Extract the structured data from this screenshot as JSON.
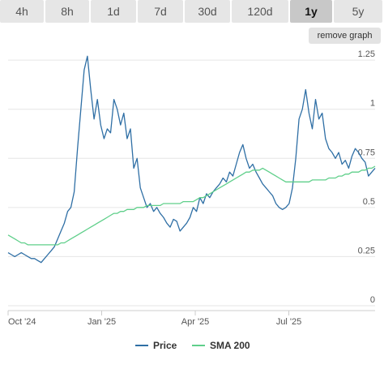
{
  "tabs": [
    {
      "label": "4h",
      "active": false
    },
    {
      "label": "8h",
      "active": false
    },
    {
      "label": "1d",
      "active": false
    },
    {
      "label": "7d",
      "active": false
    },
    {
      "label": "30d",
      "active": false
    },
    {
      "label": "120d",
      "active": false
    },
    {
      "label": "1y",
      "active": true
    },
    {
      "label": "5y",
      "active": false
    }
  ],
  "remove_graph_label": "remove graph",
  "chart_data": {
    "type": "line",
    "x_labels": [
      "Oct '24",
      "Jan '25",
      "Apr '25",
      "Jul '25"
    ],
    "y_ticks": [
      "0",
      "0.25",
      "0.5",
      "0.75",
      "1",
      "1.25"
    ],
    "ylim": [
      0,
      1.3
    ],
    "grid": true,
    "legend_position": "bottom",
    "series": [
      {
        "name": "Price",
        "color": "#2f6fa5",
        "values": [
          0.27,
          0.26,
          0.25,
          0.26,
          0.27,
          0.26,
          0.25,
          0.24,
          0.24,
          0.23,
          0.22,
          0.24,
          0.26,
          0.28,
          0.3,
          0.34,
          0.38,
          0.42,
          0.48,
          0.5,
          0.58,
          0.8,
          1.0,
          1.2,
          1.27,
          1.1,
          0.95,
          1.05,
          0.92,
          0.85,
          0.9,
          0.88,
          1.05,
          1.0,
          0.92,
          0.98,
          0.85,
          0.9,
          0.7,
          0.75,
          0.6,
          0.55,
          0.5,
          0.52,
          0.48,
          0.5,
          0.47,
          0.45,
          0.42,
          0.4,
          0.44,
          0.43,
          0.38,
          0.4,
          0.42,
          0.45,
          0.5,
          0.48,
          0.55,
          0.52,
          0.57,
          0.55,
          0.58,
          0.6,
          0.62,
          0.65,
          0.63,
          0.68,
          0.66,
          0.72,
          0.78,
          0.82,
          0.75,
          0.7,
          0.72,
          0.68,
          0.65,
          0.62,
          0.6,
          0.58,
          0.56,
          0.52,
          0.5,
          0.49,
          0.5,
          0.52,
          0.6,
          0.75,
          0.95,
          1.0,
          1.1,
          0.98,
          0.9,
          1.05,
          0.95,
          0.98,
          0.85,
          0.8,
          0.78,
          0.75,
          0.78,
          0.72,
          0.74,
          0.7,
          0.76,
          0.8,
          0.78,
          0.75,
          0.73,
          0.66,
          0.68,
          0.7
        ]
      },
      {
        "name": "SMA 200",
        "color": "#5fcf8a",
        "values": [
          0.36,
          0.35,
          0.34,
          0.33,
          0.32,
          0.32,
          0.31,
          0.31,
          0.31,
          0.31,
          0.31,
          0.31,
          0.31,
          0.31,
          0.31,
          0.31,
          0.32,
          0.32,
          0.33,
          0.34,
          0.35,
          0.36,
          0.37,
          0.38,
          0.39,
          0.4,
          0.41,
          0.42,
          0.43,
          0.44,
          0.45,
          0.46,
          0.47,
          0.47,
          0.48,
          0.48,
          0.49,
          0.49,
          0.49,
          0.5,
          0.5,
          0.5,
          0.51,
          0.51,
          0.51,
          0.51,
          0.51,
          0.52,
          0.52,
          0.52,
          0.52,
          0.52,
          0.52,
          0.53,
          0.53,
          0.53,
          0.53,
          0.54,
          0.55,
          0.55,
          0.56,
          0.57,
          0.58,
          0.59,
          0.6,
          0.61,
          0.62,
          0.63,
          0.64,
          0.65,
          0.66,
          0.67,
          0.68,
          0.68,
          0.69,
          0.69,
          0.69,
          0.7,
          0.69,
          0.68,
          0.67,
          0.66,
          0.65,
          0.64,
          0.63,
          0.63,
          0.63,
          0.63,
          0.63,
          0.63,
          0.63,
          0.63,
          0.64,
          0.64,
          0.64,
          0.64,
          0.64,
          0.65,
          0.65,
          0.65,
          0.66,
          0.66,
          0.67,
          0.67,
          0.68,
          0.68,
          0.68,
          0.69,
          0.69,
          0.7,
          0.7,
          0.71
        ]
      }
    ]
  }
}
